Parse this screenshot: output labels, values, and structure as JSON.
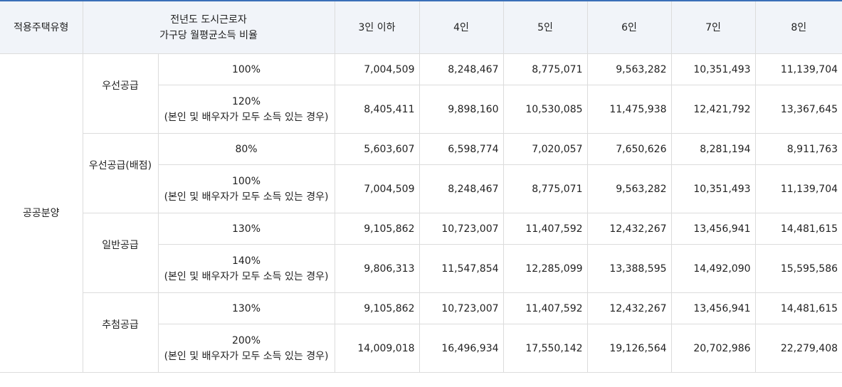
{
  "headers": {
    "housing_type": "적용주택유형",
    "income_ratio_line1": "전년도 도시근로자",
    "income_ratio_line2": "가구당 월평균소득 비율",
    "household_sizes": [
      "3인 이하",
      "4인",
      "5인",
      "6인",
      "7인",
      "8인"
    ]
  },
  "housing_type": "공공분양",
  "groups": [
    {
      "name": "우선공급",
      "rows": [
        {
          "ratio": "100%",
          "note": "",
          "values": [
            "7,004,509",
            "8,248,467",
            "8,775,071",
            "9,563,282",
            "10,351,493",
            "11,139,704"
          ]
        },
        {
          "ratio": "120%",
          "note": "(본인 및 배우자가 모두 소득 있는 경우)",
          "values": [
            "8,405,411",
            "9,898,160",
            "10,530,085",
            "11,475,938",
            "12,421,792",
            "13,367,645"
          ]
        }
      ]
    },
    {
      "name": "우선공급(배점)",
      "rows": [
        {
          "ratio": "80%",
          "note": "",
          "values": [
            "5,603,607",
            "6,598,774",
            "7,020,057",
            "7,650,626",
            "8,281,194",
            "8,911,763"
          ]
        },
        {
          "ratio": "100%",
          "note": "(본인 및 배우자가 모두 소득 있는 경우)",
          "values": [
            "7,004,509",
            "8,248,467",
            "8,775,071",
            "9,563,282",
            "10,351,493",
            "11,139,704"
          ]
        }
      ]
    },
    {
      "name": "일반공급",
      "rows": [
        {
          "ratio": "130%",
          "note": "",
          "values": [
            "9,105,862",
            "10,723,007",
            "11,407,592",
            "12,432,267",
            "13,456,941",
            "14,481,615"
          ]
        },
        {
          "ratio": "140%",
          "note": "(본인 및 배우자가 모두 소득 있는 경우)",
          "values": [
            "9,806,313",
            "11,547,854",
            "12,285,099",
            "13,388,595",
            "14,492,090",
            "15,595,586"
          ]
        }
      ]
    },
    {
      "name": "추첨공급",
      "rows": [
        {
          "ratio": "130%",
          "note": "",
          "values": [
            "9,105,862",
            "10,723,007",
            "11,407,592",
            "12,432,267",
            "13,456,941",
            "14,481,615"
          ]
        },
        {
          "ratio": "200%",
          "note": "(본인 및 배우자가 모두 소득 있는 경우)",
          "values": [
            "14,009,018",
            "16,496,934",
            "17,550,142",
            "19,126,564",
            "20,702,986",
            "22,279,408"
          ]
        }
      ]
    }
  ]
}
